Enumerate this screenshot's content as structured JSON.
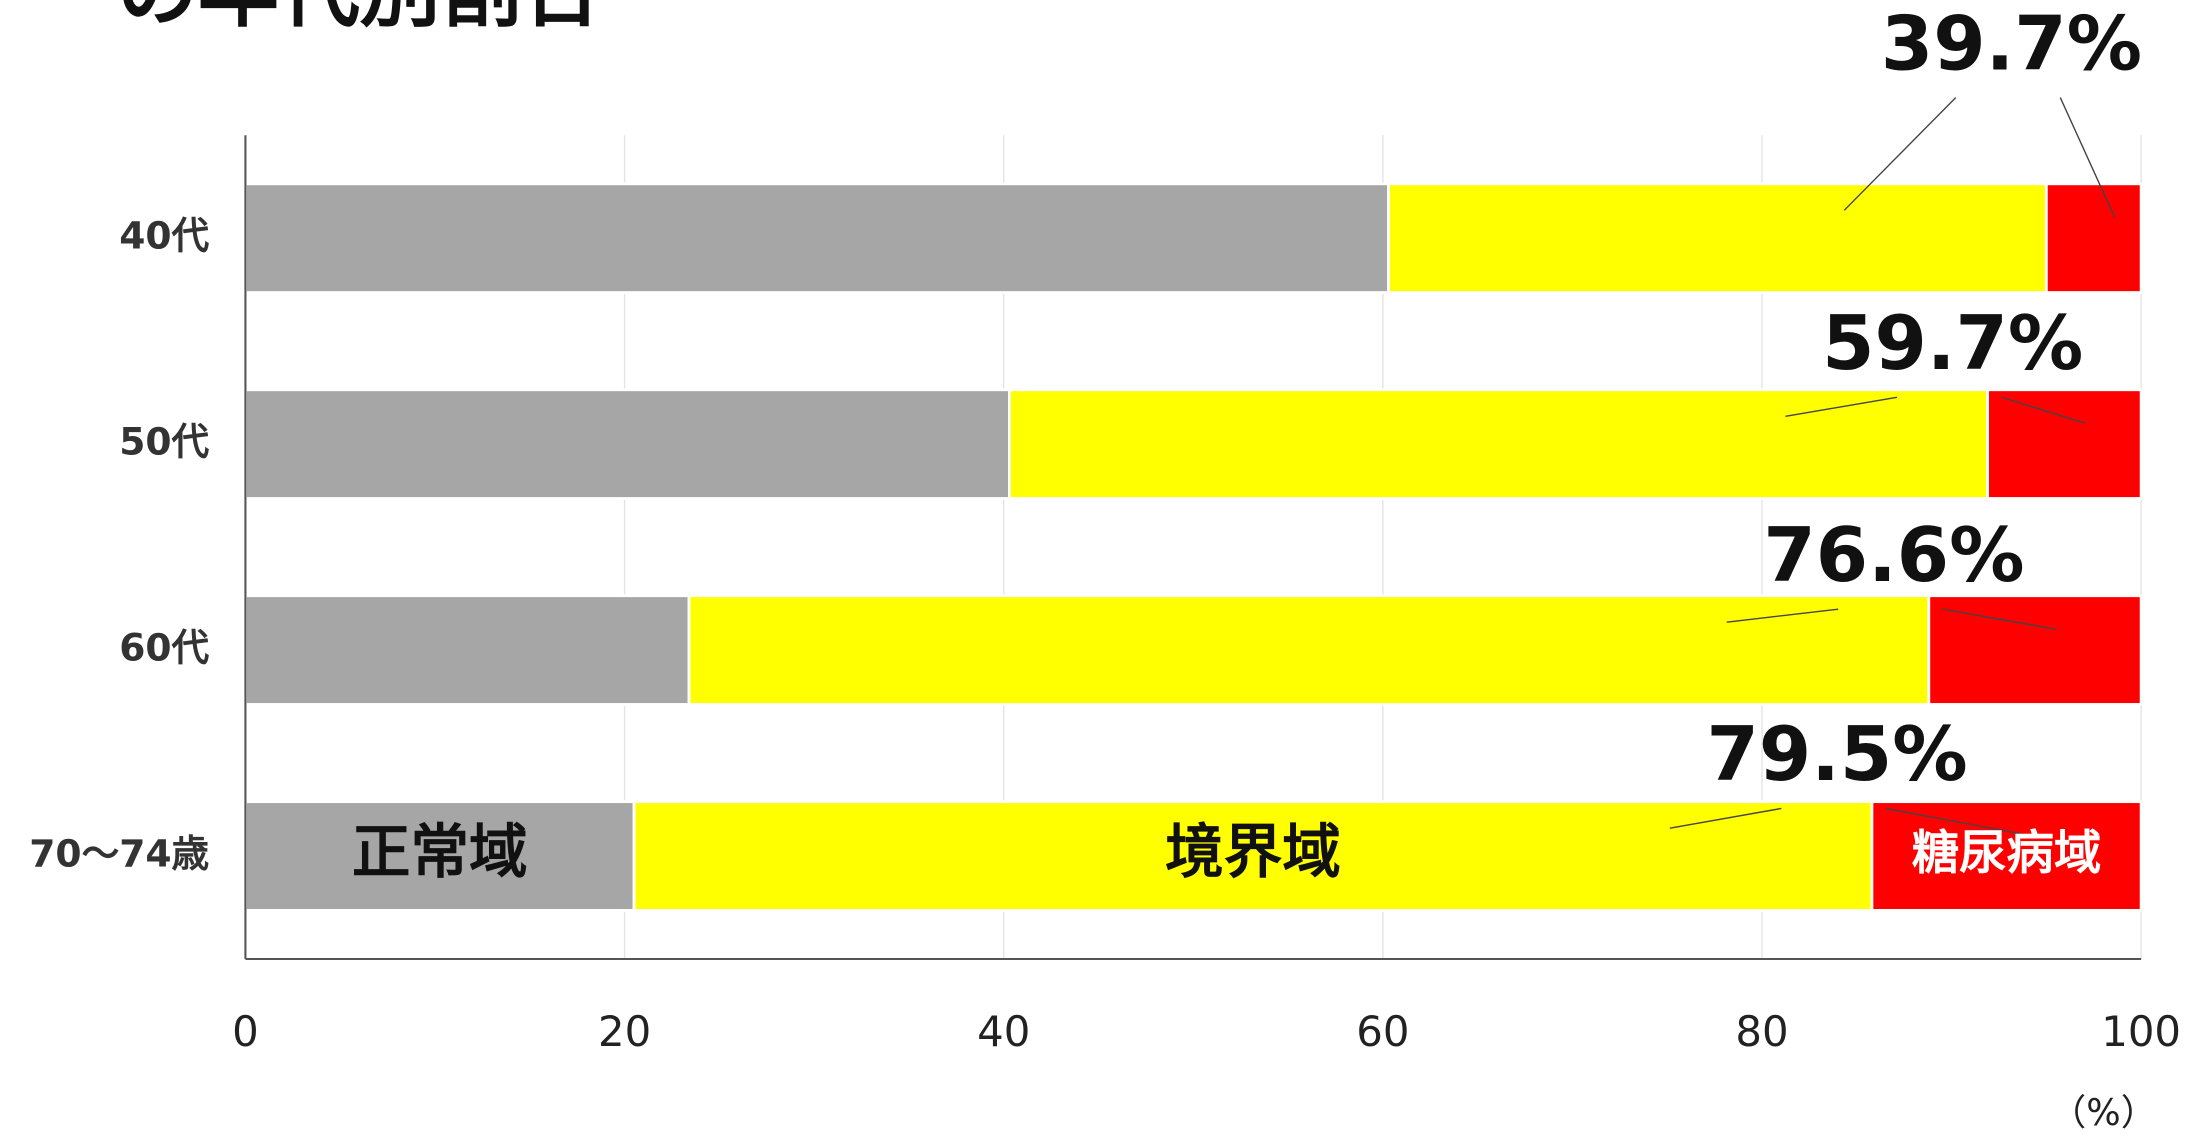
{
  "chart_data": {
    "type": "stacked-bar-horizontal",
    "title": "の年代別割合",
    "categories": [
      "40代",
      "50代",
      "60代",
      "70～74歳"
    ],
    "series": [
      {
        "name": "正常域",
        "color": "#a6a6a6",
        "values": [
          60.3,
          40.3,
          23.4,
          20.5
        ]
      },
      {
        "name": "境界域",
        "color": "#ffff00",
        "values": [
          34.7,
          51.6,
          65.4,
          65.3
        ]
      },
      {
        "name": "糖尿病域",
        "color": "#ff0000",
        "values": [
          5.0,
          8.1,
          11.2,
          14.2
        ]
      }
    ],
    "annotations": [
      "39.7%",
      "59.7%",
      "76.6%",
      "79.5%"
    ],
    "x_unit": "（%）",
    "xlim": [
      0,
      100
    ],
    "xticks": [
      0,
      20,
      40,
      60,
      80,
      100
    ],
    "grid": true
  }
}
